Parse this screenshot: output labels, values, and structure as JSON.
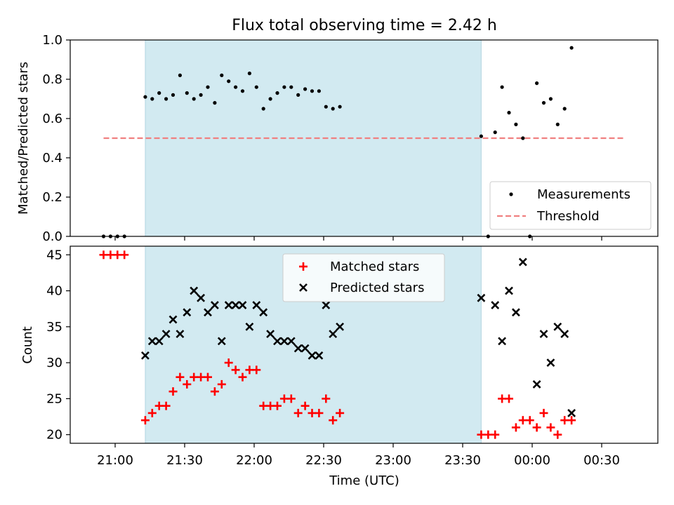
{
  "title": "Flux total observing time = 2.42 h",
  "colors": {
    "shade": "#add8e6",
    "measurement": "#000000",
    "threshold": "#f08080",
    "matched": "#ff0000",
    "predicted": "#000000"
  },
  "chart_data": [
    {
      "type": "scatter",
      "ylabel": "Matched/Predicted stars",
      "ylim": [
        0,
        1.0
      ],
      "yticks": [
        "0.0",
        "0.2",
        "0.4",
        "0.6",
        "0.8",
        "1.0"
      ],
      "legend": [
        "Measurements",
        "Threshold"
      ],
      "legend_position": "lower right",
      "threshold": 0.5,
      "threshold_x_range": [
        "20:55",
        "00:40"
      ],
      "shaded_x_range": [
        "21:13",
        "23:38"
      ],
      "series": [
        {
          "name": "Measurements",
          "points": [
            [
              "20:55",
              0.0
            ],
            [
              "20:58",
              0.0
            ],
            [
              "21:01",
              0.0
            ],
            [
              "21:04",
              0.0
            ],
            [
              "21:13",
              0.71
            ],
            [
              "21:16",
              0.7
            ],
            [
              "21:19",
              0.73
            ],
            [
              "21:22",
              0.7
            ],
            [
              "21:25",
              0.72
            ],
            [
              "21:28",
              0.82
            ],
            [
              "21:31",
              0.73
            ],
            [
              "21:34",
              0.7
            ],
            [
              "21:37",
              0.72
            ],
            [
              "21:40",
              0.76
            ],
            [
              "21:43",
              0.68
            ],
            [
              "21:46",
              0.82
            ],
            [
              "21:49",
              0.79
            ],
            [
              "21:52",
              0.76
            ],
            [
              "21:55",
              0.74
            ],
            [
              "21:58",
              0.83
            ],
            [
              "22:01",
              0.76
            ],
            [
              "22:04",
              0.65
            ],
            [
              "22:07",
              0.7
            ],
            [
              "22:10",
              0.73
            ],
            [
              "22:13",
              0.76
            ],
            [
              "22:16",
              0.76
            ],
            [
              "22:19",
              0.72
            ],
            [
              "22:22",
              0.75
            ],
            [
              "22:25",
              0.74
            ],
            [
              "22:28",
              0.74
            ],
            [
              "22:31",
              0.66
            ],
            [
              "22:34",
              0.65
            ],
            [
              "22:37",
              0.66
            ],
            [
              "23:38",
              0.51
            ],
            [
              "23:41",
              0.0
            ],
            [
              "23:44",
              0.53
            ],
            [
              "23:47",
              0.76
            ],
            [
              "23:50",
              0.63
            ],
            [
              "23:53",
              0.57
            ],
            [
              "23:56",
              0.5
            ],
            [
              "23:59",
              0.0
            ],
            [
              "00:02",
              0.78
            ],
            [
              "00:05",
              0.68
            ],
            [
              "00:08",
              0.7
            ],
            [
              "00:11",
              0.57
            ],
            [
              "00:14",
              0.65
            ],
            [
              "00:17",
              0.96
            ]
          ]
        }
      ]
    },
    {
      "type": "scatter",
      "xlabel": "Time (UTC)",
      "ylabel": "Count",
      "ylim": [
        18.8,
        46.2
      ],
      "yticks": [
        "20",
        "25",
        "30",
        "35",
        "40",
        "45"
      ],
      "xticks": [
        "21:00",
        "21:30",
        "22:00",
        "22:30",
        "23:00",
        "23:30",
        "00:00",
        "00:30"
      ],
      "legend": [
        "Matched stars",
        "Predicted stars"
      ],
      "legend_position": "upper center",
      "series": [
        {
          "name": "Matched stars",
          "points": [
            [
              "20:55",
              45
            ],
            [
              "20:58",
              45
            ],
            [
              "21:01",
              45
            ],
            [
              "21:04",
              45
            ],
            [
              "21:13",
              22
            ],
            [
              "21:16",
              23
            ],
            [
              "21:19",
              24
            ],
            [
              "21:22",
              24
            ],
            [
              "21:25",
              26
            ],
            [
              "21:28",
              28
            ],
            [
              "21:31",
              27
            ],
            [
              "21:34",
              28
            ],
            [
              "21:37",
              28
            ],
            [
              "21:40",
              28
            ],
            [
              "21:43",
              26
            ],
            [
              "21:46",
              27
            ],
            [
              "21:49",
              30
            ],
            [
              "21:52",
              29
            ],
            [
              "21:55",
              28
            ],
            [
              "21:58",
              29
            ],
            [
              "22:01",
              29
            ],
            [
              "22:04",
              24
            ],
            [
              "22:07",
              24
            ],
            [
              "22:10",
              24
            ],
            [
              "22:13",
              25
            ],
            [
              "22:16",
              25
            ],
            [
              "22:19",
              23
            ],
            [
              "22:22",
              24
            ],
            [
              "22:25",
              23
            ],
            [
              "22:28",
              23
            ],
            [
              "22:31",
              25
            ],
            [
              "22:34",
              22
            ],
            [
              "22:37",
              23
            ],
            [
              "23:38",
              20
            ],
            [
              "23:41",
              20
            ],
            [
              "23:44",
              20
            ],
            [
              "23:47",
              25
            ],
            [
              "23:50",
              25
            ],
            [
              "23:53",
              21
            ],
            [
              "23:56",
              22
            ],
            [
              "23:59",
              22
            ],
            [
              "00:02",
              21
            ],
            [
              "00:05",
              23
            ],
            [
              "00:08",
              21
            ],
            [
              "00:11",
              20
            ],
            [
              "00:14",
              22
            ],
            [
              "00:17",
              22
            ]
          ]
        },
        {
          "name": "Predicted stars",
          "points": [
            [
              "21:13",
              31
            ],
            [
              "21:16",
              33
            ],
            [
              "21:19",
              33
            ],
            [
              "21:22",
              34
            ],
            [
              "21:25",
              36
            ],
            [
              "21:28",
              34
            ],
            [
              "21:31",
              37
            ],
            [
              "21:34",
              40
            ],
            [
              "21:37",
              39
            ],
            [
              "21:40",
              37
            ],
            [
              "21:43",
              38
            ],
            [
              "21:46",
              33
            ],
            [
              "21:49",
              38
            ],
            [
              "21:52",
              38
            ],
            [
              "21:55",
              38
            ],
            [
              "21:58",
              35
            ],
            [
              "22:01",
              38
            ],
            [
              "22:04",
              37
            ],
            [
              "22:07",
              34
            ],
            [
              "22:10",
              33
            ],
            [
              "22:13",
              33
            ],
            [
              "22:16",
              33
            ],
            [
              "22:19",
              32
            ],
            [
              "22:22",
              32
            ],
            [
              "22:25",
              31
            ],
            [
              "22:28",
              31
            ],
            [
              "22:31",
              38
            ],
            [
              "22:34",
              34
            ],
            [
              "22:37",
              35
            ],
            [
              "23:38",
              39
            ],
            [
              "23:44",
              38
            ],
            [
              "23:47",
              33
            ],
            [
              "23:50",
              40
            ],
            [
              "23:53",
              37
            ],
            [
              "23:56",
              44
            ],
            [
              "00:02",
              27
            ],
            [
              "00:05",
              34
            ],
            [
              "00:08",
              30
            ],
            [
              "00:11",
              35
            ],
            [
              "00:14",
              34
            ],
            [
              "00:17",
              23
            ]
          ]
        }
      ]
    }
  ]
}
